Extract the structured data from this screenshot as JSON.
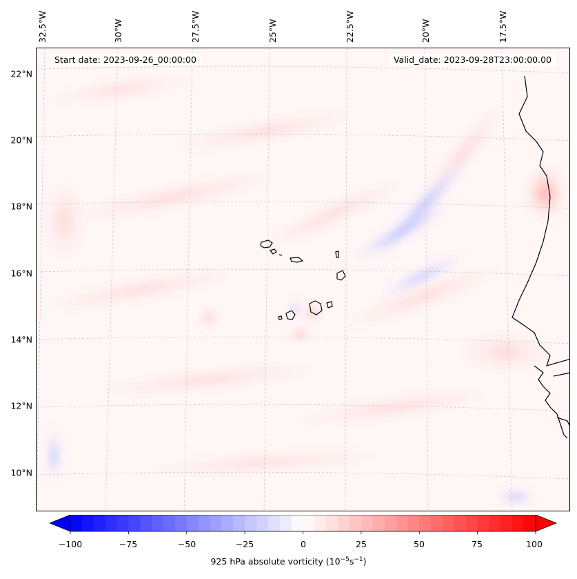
{
  "map": {
    "start_date": "Start date: 2023-09-26_00:00:00",
    "valid_date": "Valid_date: 2023-09-28T23:00:00.00",
    "lon_labels": [
      "32.5°W",
      "30°W",
      "27.5°W",
      "25°W",
      "22.5°W",
      "20°W",
      "17.5°W"
    ],
    "lat_labels": [
      "22°N",
      "20°N",
      "18°N",
      "16°N",
      "14°N",
      "12°N",
      "10°N"
    ]
  },
  "colorbar": {
    "ticks": [
      "−100",
      "−75",
      "−50",
      "−25",
      "0",
      "25",
      "50",
      "75",
      "100"
    ],
    "label_prefix": "925 hPa absolute vorticity (10",
    "label_exp1": "−5",
    "label_mid": "s",
    "label_exp2": "−1",
    "label_suffix": ")",
    "min": -100,
    "max": 100,
    "neg_color": "#0000ff",
    "zero_color": "#ffffff",
    "pos_color": "#ff0000"
  }
}
